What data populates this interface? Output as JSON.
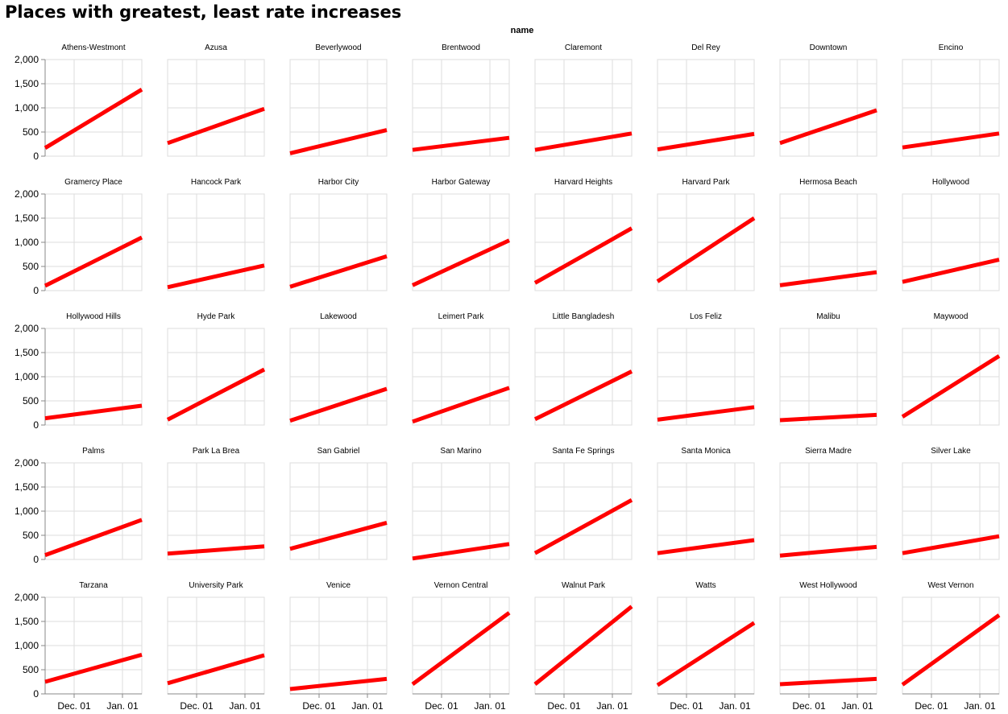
{
  "chart_data": {
    "type": "line",
    "title": "Places with greatest, least rate increases",
    "facet_header": "name",
    "y_ticks": [
      0,
      500,
      1000,
      1500,
      2000
    ],
    "y_tick_labels": [
      "0",
      "500",
      "1,000",
      "1,500",
      "2,000"
    ],
    "ylim": [
      0,
      2000
    ],
    "x_tick_labels": [
      "Dec. 01",
      "Jan. 01"
    ],
    "x_ticks": [
      0.3,
      0.8
    ],
    "xlim": [
      "Nov. 06",
      "Jan. 20"
    ],
    "x": [
      "Nov. 06",
      "Jan. 20"
    ],
    "grid": true,
    "line_color": "#ff0000",
    "columns": 8,
    "panels": [
      {
        "name": "Athens-Westmont",
        "values": [
          170,
          1380
        ]
      },
      {
        "name": "Azusa",
        "values": [
          270,
          980
        ]
      },
      {
        "name": "Beverlywood",
        "values": [
          60,
          540
        ]
      },
      {
        "name": "Brentwood",
        "values": [
          130,
          380
        ]
      },
      {
        "name": "Claremont",
        "values": [
          130,
          470
        ]
      },
      {
        "name": "Del Rey",
        "values": [
          140,
          460
        ]
      },
      {
        "name": "Downtown",
        "values": [
          270,
          950
        ]
      },
      {
        "name": "Encino",
        "values": [
          180,
          470
        ]
      },
      {
        "name": "Gramercy Place",
        "values": [
          100,
          1100
        ]
      },
      {
        "name": "Hancock Park",
        "values": [
          70,
          520
        ]
      },
      {
        "name": "Harbor City",
        "values": [
          80,
          710
        ]
      },
      {
        "name": "Harbor Gateway",
        "values": [
          110,
          1040
        ]
      },
      {
        "name": "Harvard Heights",
        "values": [
          160,
          1290
        ]
      },
      {
        "name": "Harvard Park",
        "values": [
          190,
          1500
        ]
      },
      {
        "name": "Hermosa Beach",
        "values": [
          110,
          380
        ]
      },
      {
        "name": "Hollywood",
        "values": [
          180,
          640
        ]
      },
      {
        "name": "Hollywood Hills",
        "values": [
          140,
          400
        ]
      },
      {
        "name": "Hyde Park",
        "values": [
          110,
          1150
        ]
      },
      {
        "name": "Lakewood",
        "values": [
          90,
          750
        ]
      },
      {
        "name": "Leimert Park",
        "values": [
          70,
          770
        ]
      },
      {
        "name": "Little Bangladesh",
        "values": [
          120,
          1110
        ]
      },
      {
        "name": "Los Feliz",
        "values": [
          110,
          370
        ]
      },
      {
        "name": "Malibu",
        "values": [
          100,
          210
        ]
      },
      {
        "name": "Maywood",
        "values": [
          170,
          1430
        ]
      },
      {
        "name": "Palms",
        "values": [
          90,
          820
        ]
      },
      {
        "name": "Park La Brea",
        "values": [
          120,
          270
        ]
      },
      {
        "name": "San Gabriel",
        "values": [
          220,
          760
        ]
      },
      {
        "name": "San Marino",
        "values": [
          20,
          320
        ]
      },
      {
        "name": "Santa Fe Springs",
        "values": [
          130,
          1230
        ]
      },
      {
        "name": "Santa Monica",
        "values": [
          130,
          400
        ]
      },
      {
        "name": "Sierra Madre",
        "values": [
          80,
          260
        ]
      },
      {
        "name": "Silver Lake",
        "values": [
          130,
          480
        ]
      },
      {
        "name": "Tarzana",
        "values": [
          250,
          810
        ]
      },
      {
        "name": "University Park",
        "values": [
          220,
          800
        ]
      },
      {
        "name": "Venice",
        "values": [
          100,
          310
        ]
      },
      {
        "name": "Vernon Central",
        "values": [
          200,
          1680
        ]
      },
      {
        "name": "Walnut Park",
        "values": [
          200,
          1810
        ]
      },
      {
        "name": "Watts",
        "values": [
          180,
          1470
        ]
      },
      {
        "name": "West Hollywood",
        "values": [
          200,
          310
        ]
      },
      {
        "name": "West Vernon",
        "values": [
          190,
          1630
        ]
      }
    ]
  }
}
